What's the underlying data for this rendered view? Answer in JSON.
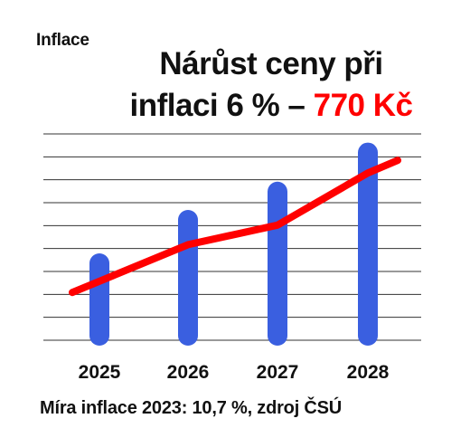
{
  "tag_label": "Inflace",
  "title": {
    "line1": "Nárůst ceny při",
    "line2_prefix": "inflaci 6 % – ",
    "line2_accent": "770 Kč"
  },
  "footnote": "Míra inflace 2023: 10,7 %, zdroj ČSÚ",
  "colors": {
    "bar": "#3a5fe0",
    "line": "#ff0000",
    "accent": "#ff0000",
    "grid": "#333333"
  },
  "chart_data": {
    "type": "bar",
    "categories": [
      "2025",
      "2026",
      "2027",
      "2028"
    ],
    "series": [
      {
        "type": "bar",
        "values": [
          4,
          6,
          7.3,
          9.1
        ]
      },
      {
        "type": "line",
        "values": [
          2.2,
          4.4,
          5.3,
          7.7
        ]
      }
    ],
    "ylim": [
      0,
      9.5
    ],
    "grid": true,
    "gridline_count": 10,
    "xlabel": "",
    "ylabel": ""
  }
}
